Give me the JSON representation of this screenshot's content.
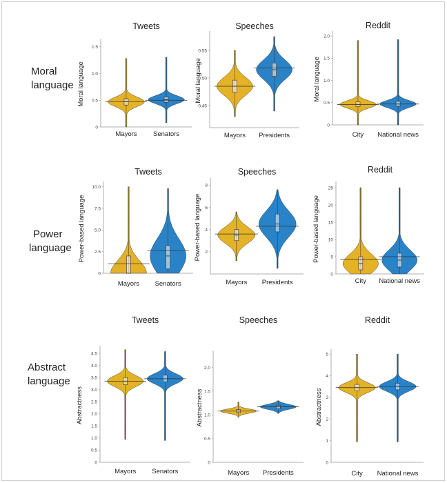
{
  "row_labels": {
    "moral": [
      "Moral",
      "language"
    ],
    "power": [
      "Power",
      "language"
    ],
    "abstract": [
      "Abstract",
      "language"
    ]
  },
  "colors": {
    "first": "#e3b226",
    "second": "#2a82c7"
  },
  "chart_data": [
    {
      "type": "violin",
      "row": 0,
      "col": 0,
      "title": "Tweets",
      "ylabel": "Moral language",
      "categories": [
        "Mayors",
        "Senators"
      ],
      "ylim": [
        0,
        1.6
      ],
      "ticks": [
        0,
        0.5,
        1.0,
        1.5
      ],
      "tick_labels": [
        "0",
        "0.5",
        "1.0",
        "1.5"
      ],
      "series": [
        {
          "median": 0.47,
          "q1": 0.41,
          "q3": 0.53,
          "min": 0.0,
          "max": 1.28,
          "mean": 0.47
        },
        {
          "median": 0.51,
          "q1": 0.46,
          "q3": 0.56,
          "min": 0.08,
          "max": 1.3,
          "mean": 0.5
        }
      ]
    },
    {
      "type": "violin",
      "row": 0,
      "col": 1,
      "title": "Speeches",
      "ylabel": "Moral language",
      "categories": [
        "Mayors",
        "Presidents"
      ],
      "ylim": [
        0.41,
        0.58
      ],
      "ticks": [
        0.45,
        0.5,
        0.55
      ],
      "tick_labels": [
        "0.45",
        "0.50",
        "0.55"
      ],
      "series": [
        {
          "median": 0.485,
          "q1": 0.474,
          "q3": 0.496,
          "min": 0.43,
          "max": 0.55,
          "mean": 0.485
        },
        {
          "median": 0.515,
          "q1": 0.503,
          "q3": 0.527,
          "min": 0.44,
          "max": 0.575,
          "mean": 0.518
        }
      ]
    },
    {
      "type": "violin",
      "row": 0,
      "col": 2,
      "title": "Reddit",
      "ylabel": "Moral language",
      "categories": [
        "City",
        "National news"
      ],
      "ylim": [
        0,
        2.05
      ],
      "ticks": [
        0,
        0.5,
        1.0,
        1.5,
        2.0
      ],
      "tick_labels": [
        "0",
        "0.5",
        "1.0",
        "1.5",
        "2.0"
      ],
      "series": [
        {
          "median": 0.46,
          "q1": 0.41,
          "q3": 0.52,
          "min": 0.0,
          "max": 1.9,
          "mean": 0.46
        },
        {
          "median": 0.47,
          "q1": 0.42,
          "q3": 0.53,
          "min": 0.0,
          "max": 1.92,
          "mean": 0.47
        }
      ]
    },
    {
      "type": "violin",
      "row": 1,
      "col": 0,
      "title": "Tweets",
      "ylabel": "Power-based language",
      "categories": [
        "Mayors",
        "Senators"
      ],
      "ylim": [
        0,
        10.3
      ],
      "ticks": [
        0,
        2.5,
        5.0,
        7.5,
        10.0
      ],
      "tick_labels": [
        "0",
        "2.5",
        "5.0",
        "7.5",
        "10.0"
      ],
      "series": [
        {
          "median": 0.0,
          "q1": 0.0,
          "q3": 2.0,
          "min": 0.0,
          "max": 10.0,
          "mean": 1.1
        },
        {
          "median": 2.0,
          "q1": 0.5,
          "q3": 3.2,
          "min": 0.0,
          "max": 9.8,
          "mean": 2.6
        }
      ]
    },
    {
      "type": "violin",
      "row": 1,
      "col": 1,
      "title": "Speeches",
      "ylabel": "Power-based language",
      "categories": [
        "Mayors",
        "Presidents"
      ],
      "ylim": [
        0,
        8.4
      ],
      "ticks": [
        2,
        4,
        6,
        8
      ],
      "tick_labels": [
        "2",
        "4",
        "6",
        "8"
      ],
      "series": [
        {
          "median": 3.5,
          "q1": 3.0,
          "q3": 4.0,
          "min": 1.2,
          "max": 5.6,
          "mean": 3.6
        },
        {
          "median": 4.5,
          "q1": 3.8,
          "q3": 5.4,
          "min": 0.5,
          "max": 7.6,
          "mean": 4.3
        }
      ]
    },
    {
      "type": "violin",
      "row": 1,
      "col": 2,
      "title": "Reddit",
      "ylabel": "Power-based language",
      "categories": [
        "City",
        "National news"
      ],
      "ylim": [
        0,
        26
      ],
      "ticks": [
        0,
        5,
        10,
        15,
        20,
        25
      ],
      "tick_labels": [
        "0",
        "5",
        "10",
        "15",
        "20",
        "25"
      ],
      "series": [
        {
          "median": 3.0,
          "q1": 1.2,
          "q3": 5.0,
          "min": 0.0,
          "max": 25.0,
          "mean": 4.2
        },
        {
          "median": 4.0,
          "q1": 2.0,
          "q3": 6.0,
          "min": 0.0,
          "max": 25.0,
          "mean": 5.0
        }
      ]
    },
    {
      "type": "violin",
      "row": 2,
      "col": 0,
      "title": "Tweets",
      "ylabel": "Abstractness",
      "categories": [
        "Mayors",
        "Senators"
      ],
      "ylim": [
        0,
        4.7
      ],
      "ticks": [
        0,
        0.5,
        1.0,
        1.5,
        2.0,
        2.5,
        3.0,
        3.5,
        4.0,
        4.5
      ],
      "tick_labels": [
        "0",
        "0.5",
        "1.0",
        "1.5",
        "2.0",
        "2.5",
        "3.0",
        "3.5",
        "4.0",
        "4.5"
      ],
      "series": [
        {
          "median": 3.35,
          "q1": 3.2,
          "q3": 3.5,
          "min": 0.95,
          "max": 4.65,
          "mean": 3.35
        },
        {
          "median": 3.45,
          "q1": 3.32,
          "q3": 3.6,
          "min": 0.9,
          "max": 4.6,
          "mean": 3.45
        }
      ]
    },
    {
      "type": "violin",
      "row": 2,
      "col": 1,
      "title": "Speeches",
      "ylabel": "Abstractness",
      "categories": [
        "Mayors",
        "Presidents"
      ],
      "ylim": [
        0,
        2.3
      ],
      "ticks": [
        0,
        0.5,
        1.0,
        1.5,
        2.0
      ],
      "tick_labels": [
        "0",
        "0.5",
        "1.0",
        "1.5",
        "2.0"
      ],
      "series": [
        {
          "median": 1.08,
          "q1": 1.05,
          "q3": 1.11,
          "min": 0.95,
          "max": 1.27,
          "mean": 1.08
        },
        {
          "median": 1.17,
          "q1": 1.13,
          "q3": 1.2,
          "min": 1.03,
          "max": 1.3,
          "mean": 1.17
        }
      ]
    },
    {
      "type": "violin",
      "row": 2,
      "col": 2,
      "title": "Reddit",
      "ylabel": "Abstractness",
      "categories": [
        "City",
        "National news"
      ],
      "ylim": [
        0,
        5.1
      ],
      "ticks": [
        0,
        1,
        2,
        3,
        4,
        5
      ],
      "tick_labels": [
        "0",
        "1",
        "2",
        "3",
        "4",
        "5"
      ],
      "series": [
        {
          "median": 3.45,
          "q1": 3.3,
          "q3": 3.6,
          "min": 0.95,
          "max": 5.0,
          "mean": 3.45
        },
        {
          "median": 3.5,
          "q1": 3.35,
          "q3": 3.65,
          "min": 0.95,
          "max": 5.0,
          "mean": 3.5
        }
      ]
    }
  ]
}
